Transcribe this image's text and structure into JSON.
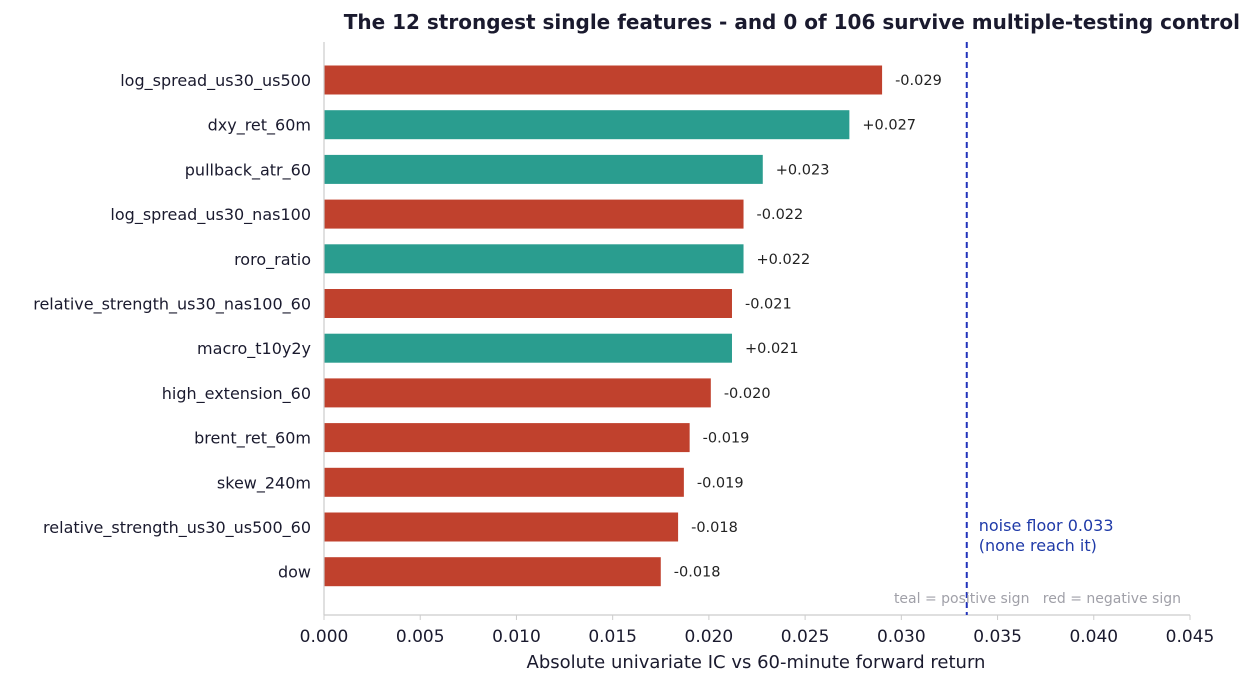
{
  "chart_data": {
    "type": "bar",
    "orientation": "horizontal",
    "title": "The 12 strongest single features - and 0 of 106 survive multiple-testing control",
    "xlabel": "Absolute univariate IC vs 60-minute forward return",
    "ylabel": "",
    "xlim": [
      0,
      0.045
    ],
    "xticks": [
      "0.000",
      "0.005",
      "0.010",
      "0.015",
      "0.020",
      "0.025",
      "0.030",
      "0.035",
      "0.040",
      "0.045"
    ],
    "categories": [
      "log_spread_us30_us500",
      "dxy_ret_60m",
      "pullback_atr_60",
      "log_spread_us30_nas100",
      "roro_ratio",
      "relative_strength_us30_nas100_60",
      "macro_t10y2y",
      "high_extension_60",
      "brent_ret_60m",
      "skew_240m",
      "relative_strength_us30_us500_60",
      "dow"
    ],
    "values": [
      0.029,
      0.0273,
      0.0228,
      0.0218,
      0.0218,
      0.0212,
      0.0212,
      0.0201,
      0.019,
      0.0187,
      0.0184,
      0.0175
    ],
    "value_labels": [
      "-0.029",
      "+0.027",
      "+0.023",
      "-0.022",
      "+0.022",
      "-0.021",
      "+0.021",
      "-0.020",
      "-0.019",
      "-0.019",
      "-0.018",
      "-0.018"
    ],
    "signs": [
      "negative",
      "positive",
      "positive",
      "negative",
      "positive",
      "negative",
      "positive",
      "negative",
      "negative",
      "negative",
      "negative",
      "negative"
    ],
    "colors": {
      "positive": "#2a9d8f",
      "negative": "#c0412d",
      "threshold": "#2233bb",
      "note": "#1f3aa8",
      "legend": "#a0a0a8",
      "axis": "#cccccc"
    },
    "threshold": {
      "value": 0.0334,
      "label_line1": "noise floor 0.033",
      "label_line2": "(none reach it)"
    },
    "legend_note": "teal = positive sign   red = negative sign",
    "grid": false
  }
}
